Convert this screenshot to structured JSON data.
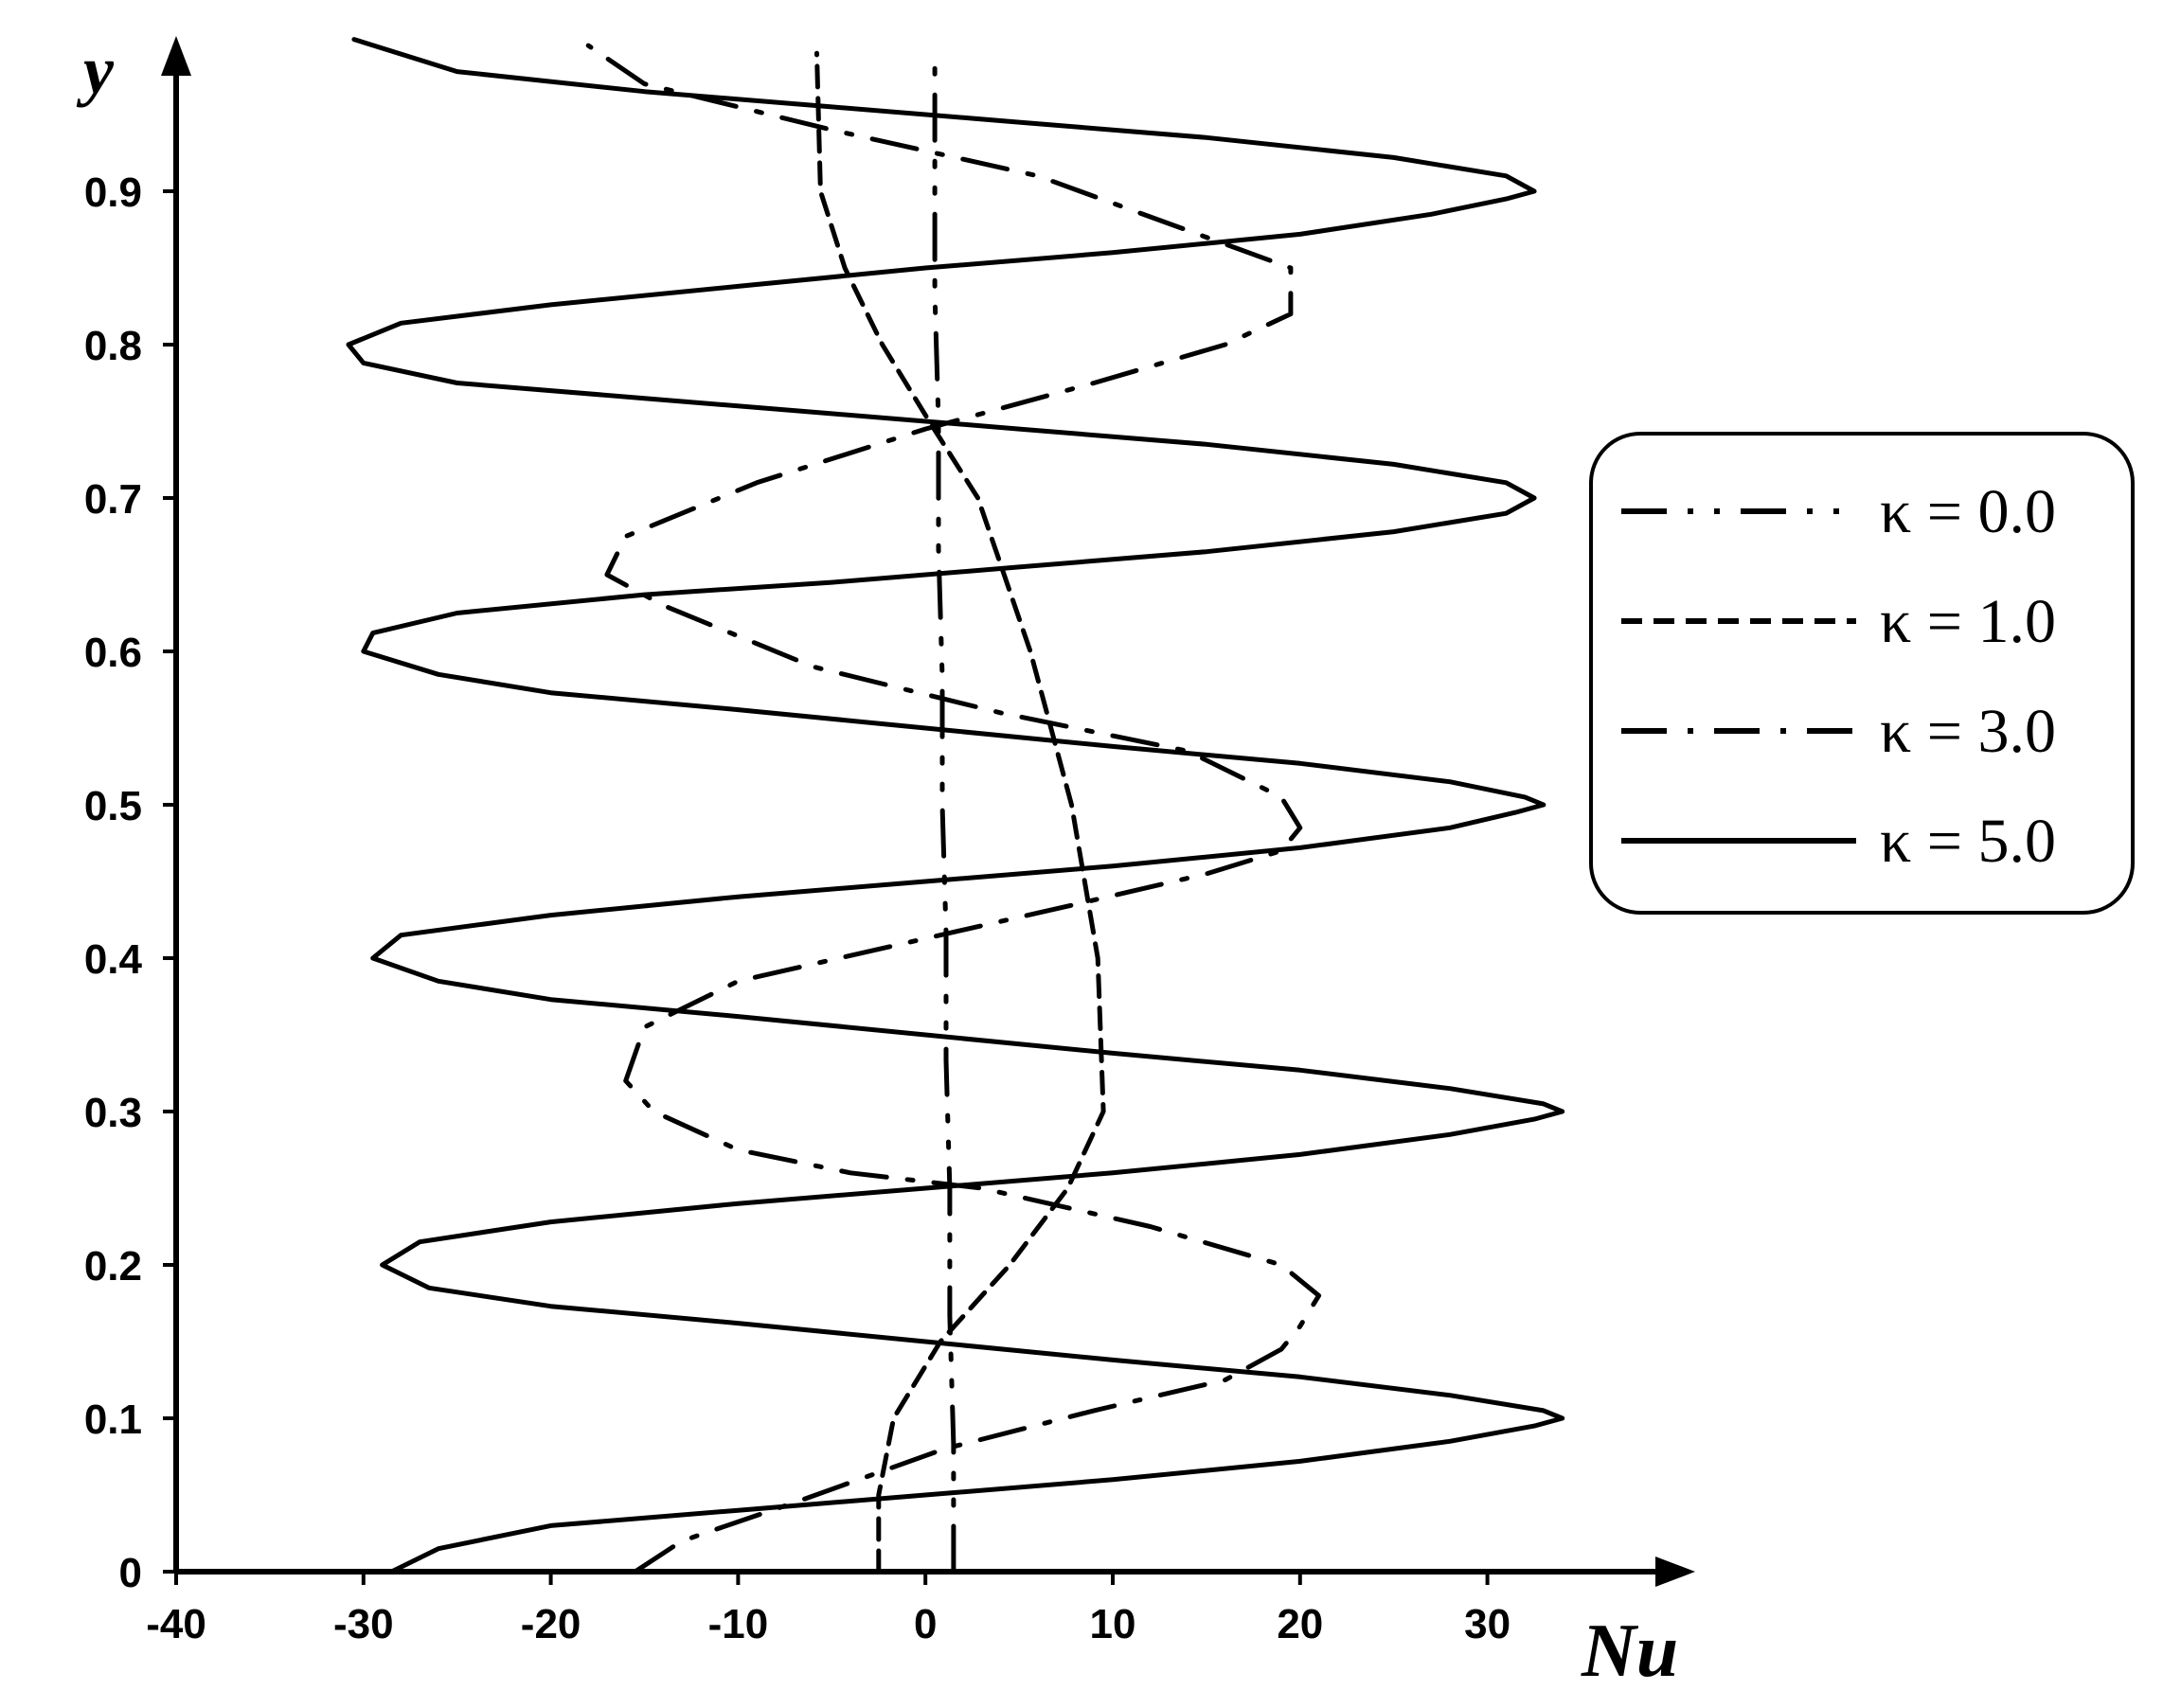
{
  "chart_data": {
    "type": "line",
    "xlabel": "Nu",
    "ylabel": "y",
    "xlim": [
      -40,
      40
    ],
    "ylim": [
      0,
      1.0
    ],
    "xticks": [
      "-40",
      "-30",
      "-20",
      "-10",
      "0",
      "10",
      "20",
      "30"
    ],
    "yticks": [
      "0",
      "0.1",
      "0.2",
      "0.3",
      "0.4",
      "0.5",
      "0.6",
      "0.7",
      "0.8",
      "0.9"
    ],
    "grid": false,
    "legend_position": "right",
    "series": [
      {
        "name": "κ = 0.0",
        "line_style": "long-dash-dot-dot",
        "x": [
          1.5,
          1.5,
          1.3,
          1.3,
          1.1,
          1.1,
          0.9,
          0.9,
          0.7,
          0.7,
          0.5,
          0.5
        ],
        "y": [
          0.0,
          0.083,
          0.1667,
          0.25,
          0.3333,
          0.4167,
          0.5,
          0.5833,
          0.6667,
          0.75,
          0.8333,
          0.98
        ]
      },
      {
        "name": "κ = 1.0",
        "line_style": "short-dash",
        "x": [
          -2.5,
          -2.5,
          -1.7,
          0.8,
          4.5,
          7.6,
          9.5,
          9.2,
          7.8,
          5.6,
          2.8,
          0.2,
          -2.3,
          -4.3,
          -5.6,
          -5.8
        ],
        "y": [
          0.0,
          0.05,
          0.1,
          0.15,
          0.2,
          0.25,
          0.3,
          0.4,
          0.5,
          0.6,
          0.7,
          0.75,
          0.8,
          0.85,
          0.9,
          0.99
        ]
      },
      {
        "name": "κ = 3.0",
        "line_style": "dash-dot",
        "x": [
          -15.5,
          -13,
          -7,
          1,
          9,
          16,
          19,
          20,
          21,
          19,
          12,
          3,
          -4,
          -10,
          -14.5,
          -16,
          -15,
          -10,
          -1,
          8,
          15,
          19,
          20,
          19,
          14,
          4,
          -6,
          -14,
          -17,
          -16,
          -9,
          0,
          9,
          16,
          19.5,
          19.5,
          15,
          6,
          -5,
          -15,
          -18
        ],
        "y": [
          0.0,
          0.02,
          0.045,
          0.08,
          0.105,
          0.125,
          0.145,
          0.16,
          0.18,
          0.2,
          0.225,
          0.25,
          0.26,
          0.275,
          0.3,
          0.32,
          0.355,
          0.385,
          0.41,
          0.435,
          0.455,
          0.47,
          0.485,
          0.505,
          0.535,
          0.56,
          0.59,
          0.63,
          0.65,
          0.675,
          0.71,
          0.745,
          0.775,
          0.8,
          0.82,
          0.85,
          0.87,
          0.91,
          0.94,
          0.97,
          0.995
        ]
      },
      {
        "name": "κ = 5.0",
        "line_style": "solid",
        "x": [
          -28.5,
          -26,
          -20,
          -10,
          0,
          10,
          20,
          28,
          32.5,
          34,
          33,
          28,
          20,
          10,
          0,
          -10,
          -20,
          -26.5,
          -29,
          -27,
          -20,
          -10,
          0,
          10,
          20,
          28,
          32.5,
          34,
          33,
          28,
          20,
          10,
          0,
          -10,
          -20,
          -26,
          -29.5,
          -28,
          -20,
          -10,
          0,
          10,
          20,
          28,
          31.5,
          33,
          32,
          28,
          20,
          10,
          0,
          -10,
          -20,
          -26,
          -30,
          -29.5,
          -25,
          -15,
          -5,
          5,
          15,
          25,
          31,
          32.5,
          31,
          25,
          15,
          5,
          -5,
          -15,
          -25,
          -30,
          -30.8,
          -28,
          -20,
          -10,
          0,
          10,
          20,
          27,
          31,
          32.5,
          31,
          25,
          15,
          5,
          -5,
          -15,
          -25,
          -30.5
        ],
        "y": [
          0.0,
          0.015,
          0.03,
          0.04,
          0.05,
          0.06,
          0.072,
          0.085,
          0.095,
          0.1,
          0.105,
          0.115,
          0.127,
          0.138,
          0.15,
          0.162,
          0.173,
          0.185,
          0.2,
          0.215,
          0.228,
          0.24,
          0.25,
          0.26,
          0.272,
          0.285,
          0.295,
          0.3,
          0.305,
          0.315,
          0.327,
          0.338,
          0.35,
          0.362,
          0.373,
          0.385,
          0.4,
          0.415,
          0.428,
          0.44,
          0.45,
          0.46,
          0.472,
          0.485,
          0.495,
          0.5,
          0.505,
          0.515,
          0.527,
          0.538,
          0.55,
          0.562,
          0.573,
          0.585,
          0.6,
          0.612,
          0.625,
          0.637,
          0.645,
          0.655,
          0.665,
          0.678,
          0.69,
          0.7,
          0.71,
          0.722,
          0.735,
          0.745,
          0.755,
          0.765,
          0.775,
          0.788,
          0.8,
          0.814,
          0.826,
          0.838,
          0.85,
          0.86,
          0.872,
          0.885,
          0.895,
          0.9,
          0.91,
          0.922,
          0.935,
          0.945,
          0.955,
          0.965,
          0.978,
          0.999
        ]
      }
    ]
  }
}
